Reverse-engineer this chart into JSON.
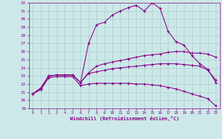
{
  "xlabel": "Windchill (Refroidissement éolien,°C)",
  "background_color": "#cce8e8",
  "grid_color": "#aacccc",
  "line_color": "#880088",
  "xlim": [
    -0.5,
    23.5
  ],
  "ylim": [
    19,
    32
  ],
  "yticks": [
    19,
    20,
    21,
    22,
    23,
    24,
    25,
    26,
    27,
    28,
    29,
    30,
    31,
    32
  ],
  "xticks": [
    0,
    1,
    2,
    3,
    4,
    5,
    6,
    7,
    8,
    9,
    10,
    11,
    12,
    13,
    14,
    15,
    16,
    17,
    18,
    19,
    20,
    21,
    22,
    23
  ],
  "lines": [
    {
      "x": [
        0,
        1,
        2,
        3,
        4,
        5,
        6,
        7,
        8,
        9,
        10,
        11,
        12,
        13,
        14,
        15,
        16,
        17,
        18,
        19,
        20,
        21,
        22,
        23
      ],
      "y": [
        20.8,
        21.5,
        23.0,
        23.1,
        23.1,
        23.1,
        22.2,
        27.0,
        29.3,
        29.6,
        30.5,
        31.0,
        31.4,
        31.7,
        31.0,
        32.0,
        31.3,
        28.5,
        27.2,
        26.8,
        25.5,
        24.5,
        23.8,
        22.2
      ]
    },
    {
      "x": [
        0,
        1,
        2,
        3,
        4,
        5,
        6,
        7,
        8,
        9,
        10,
        11,
        12,
        13,
        14,
        15,
        16,
        17,
        18,
        19,
        20,
        21,
        22,
        23
      ],
      "y": [
        20.8,
        21.5,
        23.0,
        23.1,
        23.1,
        23.1,
        22.2,
        23.4,
        24.2,
        24.5,
        24.7,
        24.9,
        25.1,
        25.3,
        25.5,
        25.6,
        25.7,
        25.9,
        26.0,
        26.0,
        25.8,
        25.8,
        25.7,
        25.3
      ]
    },
    {
      "x": [
        0,
        1,
        2,
        3,
        4,
        5,
        6,
        7,
        8,
        9,
        10,
        11,
        12,
        13,
        14,
        15,
        16,
        17,
        18,
        19,
        20,
        21,
        22,
        23
      ],
      "y": [
        20.8,
        21.5,
        23.0,
        23.1,
        23.1,
        23.1,
        22.2,
        23.3,
        23.5,
        23.7,
        23.9,
        24.0,
        24.1,
        24.2,
        24.3,
        24.4,
        24.5,
        24.5,
        24.5,
        24.4,
        24.3,
        24.2,
        23.7,
        22.5
      ]
    },
    {
      "x": [
        0,
        1,
        2,
        3,
        4,
        5,
        6,
        7,
        8,
        9,
        10,
        11,
        12,
        13,
        14,
        15,
        16,
        17,
        18,
        19,
        20,
        21,
        22,
        23
      ],
      "y": [
        20.8,
        21.3,
        22.8,
        22.9,
        22.9,
        22.9,
        21.8,
        22.0,
        22.1,
        22.1,
        22.1,
        22.1,
        22.1,
        22.0,
        22.0,
        21.9,
        21.8,
        21.6,
        21.4,
        21.1,
        20.8,
        20.5,
        20.2,
        19.3
      ]
    }
  ]
}
